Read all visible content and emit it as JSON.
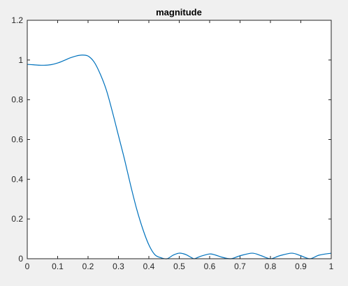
{
  "chart_data": {
    "type": "line",
    "title": "magnitude",
    "xlabel": "",
    "ylabel": "",
    "xlim": [
      0,
      1
    ],
    "ylim": [
      0,
      1.2
    ],
    "grid": false,
    "x_ticks": [
      0,
      0.1,
      0.2,
      0.3,
      0.4,
      0.5,
      0.6,
      0.7,
      0.8,
      0.9,
      1
    ],
    "x_tick_labels": [
      "0",
      "0.1",
      "0.2",
      "0.3",
      "0.4",
      "0.5",
      "0.6",
      "0.7",
      "0.8",
      "0.9",
      "1"
    ],
    "y_ticks": [
      0,
      0.2,
      0.4,
      0.6,
      0.8,
      1,
      1.2
    ],
    "y_tick_labels": [
      "0",
      "0.2",
      "0.4",
      "0.6",
      "0.8",
      "1",
      "1.2"
    ],
    "colors": {
      "line": "#0072bd",
      "axes": "#262626",
      "plot_background": "#ffffff",
      "figure_background": "#f0f0f0"
    },
    "series": [
      {
        "x": [
          0,
          0.02,
          0.04,
          0.06,
          0.08,
          0.1,
          0.12,
          0.14,
          0.16,
          0.18,
          0.2,
          0.22,
          0.24,
          0.26,
          0.28,
          0.3,
          0.32,
          0.34,
          0.36,
          0.38,
          0.4,
          0.42,
          0.44,
          0.46,
          0.48,
          0.5,
          0.52,
          0.54,
          0.55,
          0.57,
          0.6,
          0.62,
          0.64,
          0.67,
          0.7,
          0.74,
          0.77,
          0.8,
          0.83,
          0.87,
          0.9,
          0.93,
          0.96,
          1.0
        ],
        "y": [
          0.978,
          0.976,
          0.974,
          0.974,
          0.977,
          0.985,
          0.997,
          1.01,
          1.02,
          1.025,
          1.02,
          0.99,
          0.93,
          0.85,
          0.74,
          0.62,
          0.5,
          0.37,
          0.25,
          0.15,
          0.07,
          0.02,
          0.005,
          0.0,
          0.018,
          0.028,
          0.022,
          0.006,
          0.0,
          0.012,
          0.024,
          0.018,
          0.008,
          0.0,
          0.015,
          0.028,
          0.015,
          0.0,
          0.015,
          0.028,
          0.015,
          0.0,
          0.018,
          0.028
        ]
      }
    ]
  }
}
